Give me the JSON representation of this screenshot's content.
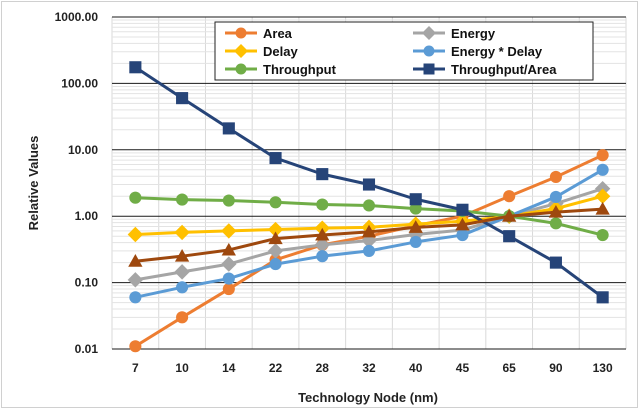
{
  "chart_data": {
    "type": "line",
    "title": "",
    "xlabel": "Technology Node (nm)",
    "ylabel": "Relative Values",
    "yscale": "log",
    "ylim": [
      0.01,
      1000
    ],
    "grid": true,
    "legend_position": "top-right",
    "categories": [
      "7",
      "10",
      "14",
      "22",
      "28",
      "32",
      "40",
      "45",
      "65",
      "90",
      "130"
    ],
    "y_tick_labels": [
      "0.01",
      "0.10",
      "1.00",
      "10.00",
      "100.00",
      "1000.00"
    ],
    "y_tick_values": [
      0.01,
      0.1,
      1,
      10,
      100,
      1000
    ],
    "series": [
      {
        "name": "Area",
        "color": "#ED7D31",
        "marker": "circle",
        "values": [
          0.011,
          0.03,
          0.08,
          0.22,
          0.37,
          0.5,
          0.72,
          1.0,
          2.0,
          3.9,
          8.3
        ]
      },
      {
        "name": "Energy",
        "color": "#A5A5A5",
        "marker": "diamond",
        "values": [
          0.11,
          0.145,
          0.19,
          0.3,
          0.37,
          0.43,
          0.53,
          0.62,
          1.0,
          1.55,
          2.6
        ]
      },
      {
        "name": "Delay",
        "color": "#FFC000",
        "marker": "diamond",
        "values": [
          0.53,
          0.57,
          0.6,
          0.63,
          0.66,
          0.68,
          0.76,
          0.84,
          1.0,
          1.3,
          2.0
        ]
      },
      {
        "name": "Energy * Delay",
        "color": "#5B9BD5",
        "marker": "circle",
        "values": [
          0.06,
          0.085,
          0.115,
          0.19,
          0.25,
          0.3,
          0.41,
          0.52,
          1.0,
          1.95,
          5.0
        ]
      },
      {
        "name": "Throughput",
        "color": "#70AD47",
        "marker": "circle",
        "values": [
          1.9,
          1.78,
          1.72,
          1.62,
          1.5,
          1.45,
          1.3,
          1.2,
          1.0,
          0.78,
          0.52
        ]
      },
      {
        "name": "Throughput/Area",
        "color": "#264478",
        "marker": "square",
        "values": [
          175,
          60,
          21,
          7.5,
          4.3,
          3.0,
          1.8,
          1.25,
          0.5,
          0.2,
          0.06
        ]
      },
      {
        "name": "",
        "color": "#9E480E",
        "marker": "triangle",
        "values": [
          0.21,
          0.25,
          0.31,
          0.46,
          0.52,
          0.58,
          0.68,
          0.74,
          1.0,
          1.15,
          1.28
        ]
      }
    ]
  }
}
